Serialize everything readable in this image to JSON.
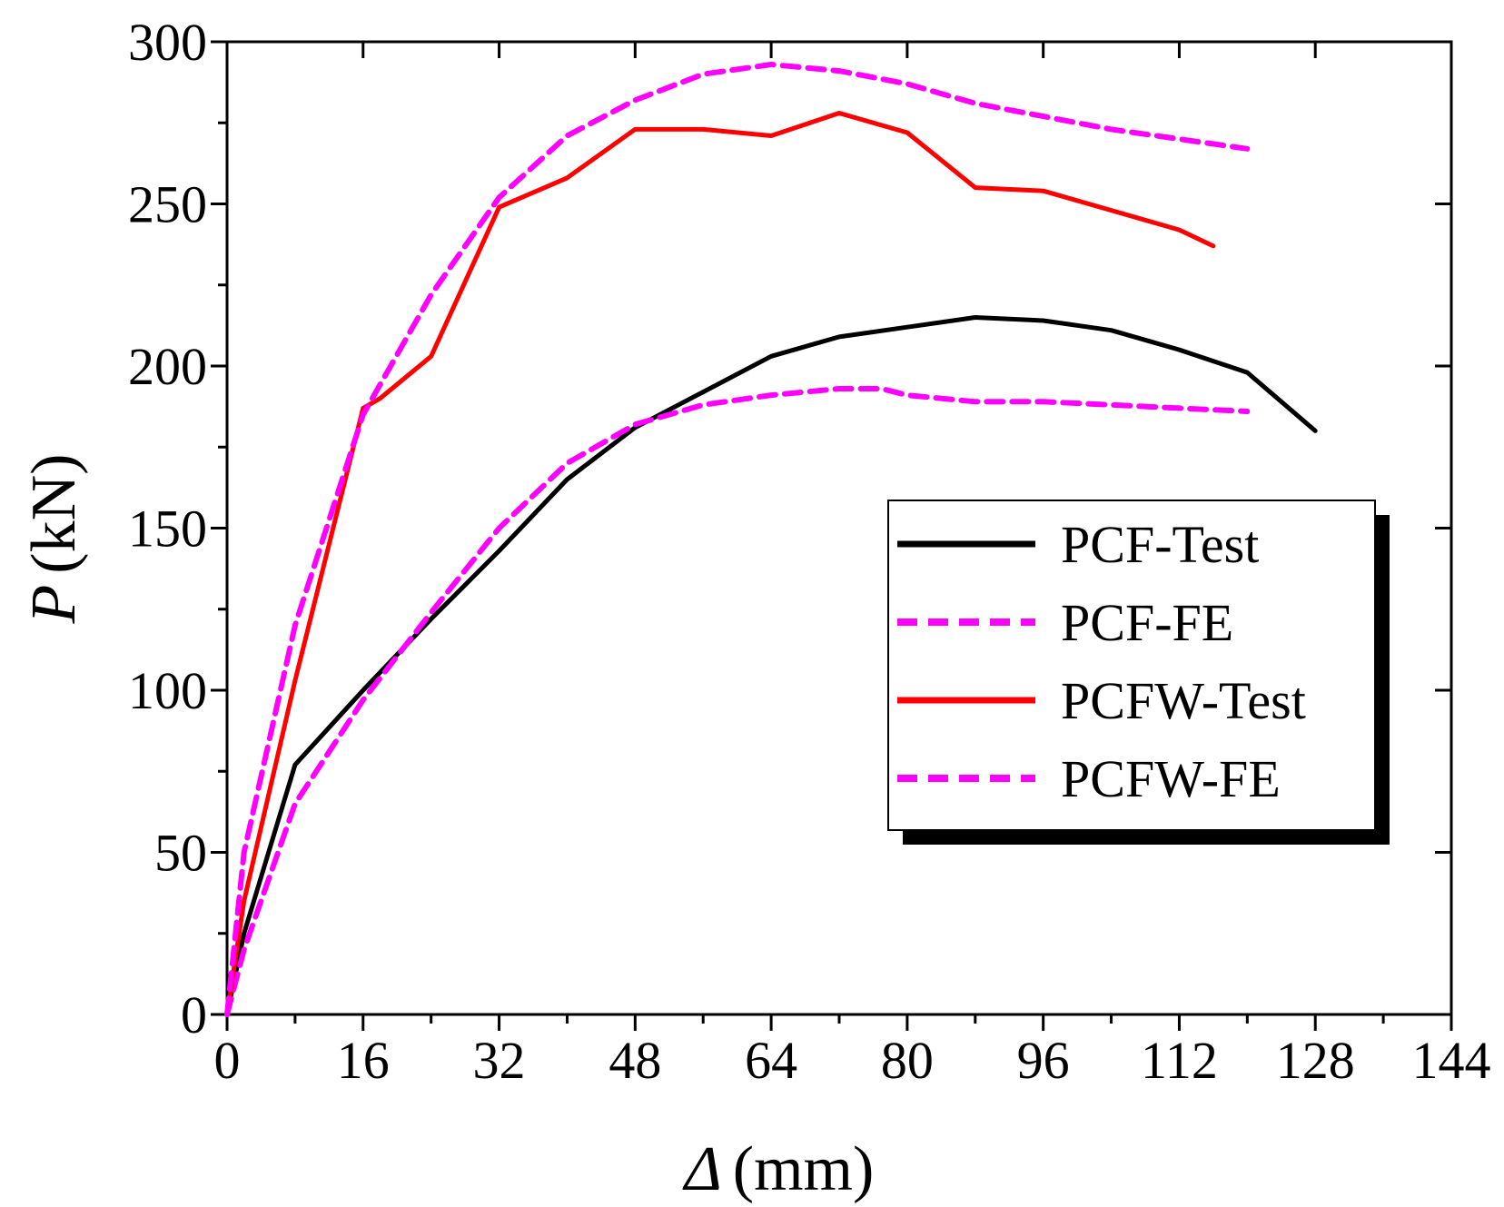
{
  "chart_data": {
    "type": "line",
    "title": "",
    "xlabel": "Δ (mm)",
    "xlabel_symbol": "Δ",
    "xlabel_unit": "(mm)",
    "ylabel": "P (kN)",
    "ylabel_symbol": "P",
    "ylabel_unit": "(kN)",
    "xlim": [
      0,
      144
    ],
    "ylim": [
      0,
      300
    ],
    "x_ticks": [
      "0",
      "16",
      "32",
      "48",
      "64",
      "80",
      "96",
      "112",
      "128",
      "144"
    ],
    "y_ticks": [
      "0",
      "50",
      "100",
      "150",
      "200",
      "250",
      "300"
    ],
    "grid": false,
    "legend_position": "right",
    "series": [
      {
        "name": "PCF-Test",
        "color": "#000000",
        "style": "solid",
        "x": [
          0,
          2,
          8,
          16,
          24,
          32,
          40,
          48,
          56,
          64,
          72,
          80,
          88,
          96,
          104,
          112,
          120,
          128
        ],
        "y": [
          0,
          25,
          77,
          100,
          122,
          143,
          165,
          181,
          192,
          203,
          209,
          212,
          215,
          214,
          211,
          205,
          198,
          180
        ]
      },
      {
        "name": "PCF-FE",
        "color": "#ff00ff",
        "style": "dashed",
        "x": [
          0,
          2,
          8,
          16,
          24,
          32,
          40,
          48,
          56,
          64,
          72,
          77,
          80,
          88,
          96,
          104,
          112,
          120
        ],
        "y": [
          0,
          20,
          65,
          97,
          124,
          150,
          170,
          182,
          188,
          191,
          193,
          193,
          191,
          189,
          189,
          188,
          187,
          186
        ]
      },
      {
        "name": "PCFW-Test",
        "color": "#ff0000",
        "style": "solid",
        "x": [
          0,
          2,
          8,
          16,
          18,
          24,
          32,
          40,
          48,
          56,
          64,
          72,
          80,
          88,
          96,
          104,
          112,
          116
        ],
        "y": [
          0,
          35,
          103,
          187,
          190,
          203,
          249,
          258,
          273,
          273,
          271,
          278,
          272,
          255,
          254,
          248,
          242,
          237
        ]
      },
      {
        "name": "PCFW-FE",
        "color": "#ff00ff",
        "style": "dashed",
        "x": [
          0,
          2,
          8,
          16,
          24,
          32,
          40,
          48,
          56,
          64,
          72,
          80,
          88,
          96,
          104,
          112,
          120
        ],
        "y": [
          0,
          50,
          120,
          185,
          222,
          252,
          271,
          282,
          290,
          293,
          291,
          287,
          281,
          277,
          273,
          270,
          267
        ]
      }
    ]
  }
}
